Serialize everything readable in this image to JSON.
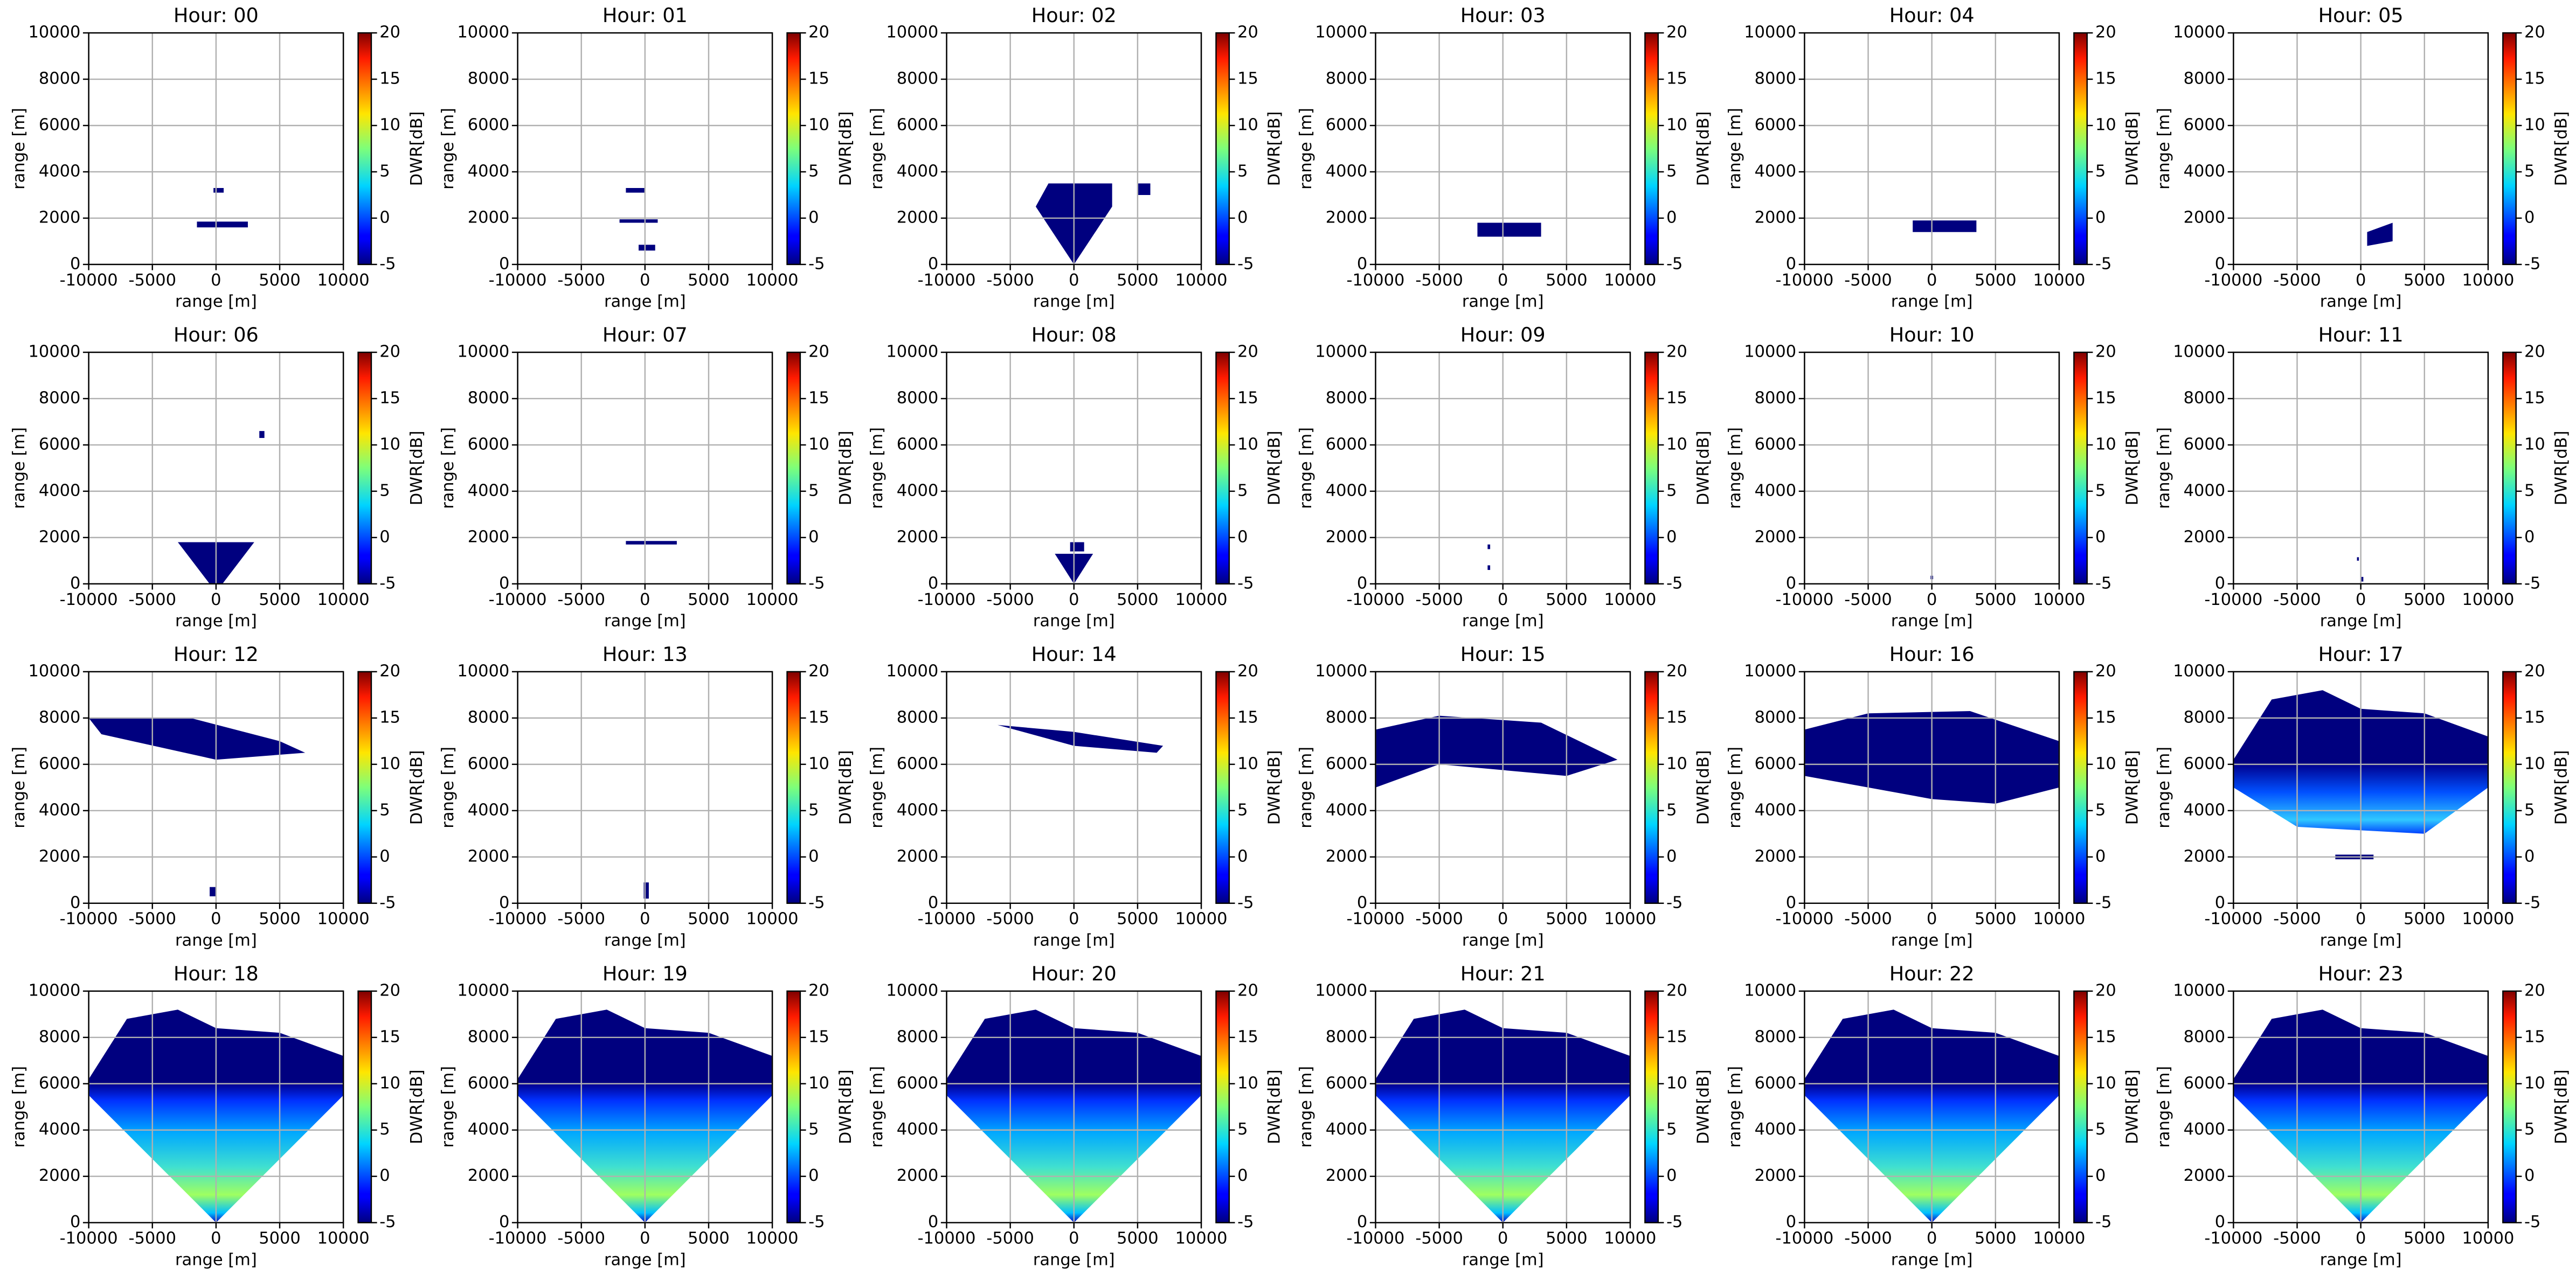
{
  "chart_data": [
    {
      "type": "heatmap",
      "title": "Hour: 00",
      "xlabel": "range [m]",
      "ylabel": "range [m]",
      "xlim": [
        -10000,
        10000
      ],
      "ylim": [
        0,
        10000
      ],
      "xticks": [
        -10000,
        -5000,
        0,
        5000,
        10000
      ],
      "yticks": [
        0,
        2000,
        4000,
        6000,
        8000,
        10000
      ],
      "grid": true,
      "colormap": "jet",
      "colorbar": {
        "label": "DWR[dB]",
        "lim": [
          -5,
          20
        ],
        "ticks": [
          -5,
          0,
          5,
          10,
          15,
          20
        ]
      }
    },
    {
      "type": "heatmap",
      "title": "Hour: 01",
      "xlabel": "range [m]",
      "ylabel": "range [m]",
      "xlim": [
        -10000,
        10000
      ],
      "ylim": [
        0,
        10000
      ],
      "xticks": [
        -10000,
        -5000,
        0,
        5000,
        10000
      ],
      "yticks": [
        0,
        2000,
        4000,
        6000,
        8000,
        10000
      ],
      "grid": true,
      "colormap": "jet",
      "colorbar": {
        "label": "DWR[dB]",
        "lim": [
          -5,
          20
        ],
        "ticks": [
          -5,
          0,
          5,
          10,
          15,
          20
        ]
      }
    },
    {
      "type": "heatmap",
      "title": "Hour: 02",
      "xlabel": "range [m]",
      "ylabel": "range [m]",
      "xlim": [
        -10000,
        10000
      ],
      "ylim": [
        0,
        10000
      ],
      "xticks": [
        -10000,
        -5000,
        0,
        5000,
        10000
      ],
      "yticks": [
        0,
        2000,
        4000,
        6000,
        8000,
        10000
      ],
      "grid": true,
      "colormap": "jet",
      "colorbar": {
        "label": "DWR[dB]",
        "lim": [
          -5,
          20
        ],
        "ticks": [
          -5,
          0,
          5,
          10,
          15,
          20
        ]
      }
    },
    {
      "type": "heatmap",
      "title": "Hour: 03",
      "xlabel": "range [m]",
      "ylabel": "range [m]",
      "xlim": [
        -10000,
        10000
      ],
      "ylim": [
        0,
        10000
      ],
      "xticks": [
        -10000,
        -5000,
        0,
        5000,
        10000
      ],
      "yticks": [
        0,
        2000,
        4000,
        6000,
        8000,
        10000
      ],
      "grid": true,
      "colormap": "jet",
      "colorbar": {
        "label": "DWR[dB]",
        "lim": [
          -5,
          20
        ],
        "ticks": [
          -5,
          0,
          5,
          10,
          15,
          20
        ]
      }
    },
    {
      "type": "heatmap",
      "title": "Hour: 04",
      "xlabel": "range [m]",
      "ylabel": "range [m]",
      "xlim": [
        -10000,
        10000
      ],
      "ylim": [
        0,
        10000
      ],
      "xticks": [
        -10000,
        -5000,
        0,
        5000,
        10000
      ],
      "yticks": [
        0,
        2000,
        4000,
        6000,
        8000,
        10000
      ],
      "grid": true,
      "colormap": "jet",
      "colorbar": {
        "label": "DWR[dB]",
        "lim": [
          -5,
          20
        ],
        "ticks": [
          -5,
          0,
          5,
          10,
          15,
          20
        ]
      }
    },
    {
      "type": "heatmap",
      "title": "Hour: 05",
      "xlabel": "range [m]",
      "ylabel": "range [m]",
      "xlim": [
        -10000,
        10000
      ],
      "ylim": [
        0,
        10000
      ],
      "xticks": [
        -10000,
        -5000,
        0,
        5000,
        10000
      ],
      "yticks": [
        0,
        2000,
        4000,
        6000,
        8000,
        10000
      ],
      "grid": true,
      "colormap": "jet",
      "colorbar": {
        "label": "DWR[dB]",
        "lim": [
          -5,
          20
        ],
        "ticks": [
          -5,
          0,
          5,
          10,
          15,
          20
        ]
      }
    },
    {
      "type": "heatmap",
      "title": "Hour: 06",
      "xlabel": "range [m]",
      "ylabel": "range [m]",
      "xlim": [
        -10000,
        10000
      ],
      "ylim": [
        0,
        10000
      ],
      "xticks": [
        -10000,
        -5000,
        0,
        5000,
        10000
      ],
      "yticks": [
        0,
        2000,
        4000,
        6000,
        8000,
        10000
      ],
      "grid": true,
      "colormap": "jet",
      "colorbar": {
        "label": "DWR[dB]",
        "lim": [
          -5,
          20
        ],
        "ticks": [
          -5,
          0,
          5,
          10,
          15,
          20
        ]
      }
    },
    {
      "type": "heatmap",
      "title": "Hour: 07",
      "xlabel": "range [m]",
      "ylabel": "range [m]",
      "xlim": [
        -10000,
        10000
      ],
      "ylim": [
        0,
        10000
      ],
      "xticks": [
        -10000,
        -5000,
        0,
        5000,
        10000
      ],
      "yticks": [
        0,
        2000,
        4000,
        6000,
        8000,
        10000
      ],
      "grid": true,
      "colormap": "jet",
      "colorbar": {
        "label": "DWR[dB]",
        "lim": [
          -5,
          20
        ],
        "ticks": [
          -5,
          0,
          5,
          10,
          15,
          20
        ]
      }
    },
    {
      "type": "heatmap",
      "title": "Hour: 08",
      "xlabel": "range [m]",
      "ylabel": "range [m]",
      "xlim": [
        -10000,
        10000
      ],
      "ylim": [
        0,
        10000
      ],
      "xticks": [
        -10000,
        -5000,
        0,
        5000,
        10000
      ],
      "yticks": [
        0,
        2000,
        4000,
        6000,
        8000,
        10000
      ],
      "grid": true,
      "colormap": "jet",
      "colorbar": {
        "label": "DWR[dB]",
        "lim": [
          -5,
          20
        ],
        "ticks": [
          -5,
          0,
          5,
          10,
          15,
          20
        ]
      }
    },
    {
      "type": "heatmap",
      "title": "Hour: 09",
      "xlabel": "range [m]",
      "ylabel": "range [m]",
      "xlim": [
        -10000,
        10000
      ],
      "ylim": [
        0,
        10000
      ],
      "xticks": [
        -10000,
        -5000,
        0,
        5000,
        10000
      ],
      "yticks": [
        0,
        2000,
        4000,
        6000,
        8000,
        10000
      ],
      "grid": true,
      "colormap": "jet",
      "colorbar": {
        "label": "DWR[dB]",
        "lim": [
          -5,
          20
        ],
        "ticks": [
          -5,
          0,
          5,
          10,
          15,
          20
        ]
      }
    },
    {
      "type": "heatmap",
      "title": "Hour: 10",
      "xlabel": "range [m]",
      "ylabel": "range [m]",
      "xlim": [
        -10000,
        10000
      ],
      "ylim": [
        0,
        10000
      ],
      "xticks": [
        -10000,
        -5000,
        0,
        5000,
        10000
      ],
      "yticks": [
        0,
        2000,
        4000,
        6000,
        8000,
        10000
      ],
      "grid": true,
      "colormap": "jet",
      "colorbar": {
        "label": "DWR[dB]",
        "lim": [
          -5,
          20
        ],
        "ticks": [
          -5,
          0,
          5,
          10,
          15,
          20
        ]
      }
    },
    {
      "type": "heatmap",
      "title": "Hour: 11",
      "xlabel": "range [m]",
      "ylabel": "range [m]",
      "xlim": [
        -10000,
        10000
      ],
      "ylim": [
        0,
        10000
      ],
      "xticks": [
        -10000,
        -5000,
        0,
        5000,
        10000
      ],
      "yticks": [
        0,
        2000,
        4000,
        6000,
        8000,
        10000
      ],
      "grid": true,
      "colormap": "jet",
      "colorbar": {
        "label": "DWR[dB]",
        "lim": [
          -5,
          20
        ],
        "ticks": [
          -5,
          0,
          5,
          10,
          15,
          20
        ]
      }
    },
    {
      "type": "heatmap",
      "title": "Hour: 12",
      "xlabel": "range [m]",
      "ylabel": "range [m]",
      "xlim": [
        -10000,
        10000
      ],
      "ylim": [
        0,
        10000
      ],
      "xticks": [
        -10000,
        -5000,
        0,
        5000,
        10000
      ],
      "yticks": [
        0,
        2000,
        4000,
        6000,
        8000,
        10000
      ],
      "grid": true,
      "colormap": "jet",
      "colorbar": {
        "label": "DWR[dB]",
        "lim": [
          -5,
          20
        ],
        "ticks": [
          -5,
          0,
          5,
          10,
          15,
          20
        ]
      }
    },
    {
      "type": "heatmap",
      "title": "Hour: 13",
      "xlabel": "range [m]",
      "ylabel": "range [m]",
      "xlim": [
        -10000,
        10000
      ],
      "ylim": [
        0,
        10000
      ],
      "xticks": [
        -10000,
        -5000,
        0,
        5000,
        10000
      ],
      "yticks": [
        0,
        2000,
        4000,
        6000,
        8000,
        10000
      ],
      "grid": true,
      "colormap": "jet",
      "colorbar": {
        "label": "DWR[dB]",
        "lim": [
          -5,
          20
        ],
        "ticks": [
          -5,
          0,
          5,
          10,
          15,
          20
        ]
      }
    },
    {
      "type": "heatmap",
      "title": "Hour: 14",
      "xlabel": "range [m]",
      "ylabel": "range [m]",
      "xlim": [
        -10000,
        10000
      ],
      "ylim": [
        0,
        10000
      ],
      "xticks": [
        -10000,
        -5000,
        0,
        5000,
        10000
      ],
      "yticks": [
        0,
        2000,
        4000,
        6000,
        8000,
        10000
      ],
      "grid": true,
      "colormap": "jet",
      "colorbar": {
        "label": "DWR[dB]",
        "lim": [
          -5,
          20
        ],
        "ticks": [
          -5,
          0,
          5,
          10,
          15,
          20
        ]
      }
    },
    {
      "type": "heatmap",
      "title": "Hour: 15",
      "xlabel": "range [m]",
      "ylabel": "range [m]",
      "xlim": [
        -10000,
        10000
      ],
      "ylim": [
        0,
        10000
      ],
      "xticks": [
        -10000,
        -5000,
        0,
        5000,
        10000
      ],
      "yticks": [
        0,
        2000,
        4000,
        6000,
        8000,
        10000
      ],
      "grid": true,
      "colormap": "jet",
      "colorbar": {
        "label": "DWR[dB]",
        "lim": [
          -5,
          20
        ],
        "ticks": [
          -5,
          0,
          5,
          10,
          15,
          20
        ]
      }
    },
    {
      "type": "heatmap",
      "title": "Hour: 16",
      "xlabel": "range [m]",
      "ylabel": "range [m]",
      "xlim": [
        -10000,
        10000
      ],
      "ylim": [
        0,
        10000
      ],
      "xticks": [
        -10000,
        -5000,
        0,
        5000,
        10000
      ],
      "yticks": [
        0,
        2000,
        4000,
        6000,
        8000,
        10000
      ],
      "grid": true,
      "colormap": "jet",
      "colorbar": {
        "label": "DWR[dB]",
        "lim": [
          -5,
          20
        ],
        "ticks": [
          -5,
          0,
          5,
          10,
          15,
          20
        ]
      }
    },
    {
      "type": "heatmap",
      "title": "Hour: 17",
      "xlabel": "range [m]",
      "ylabel": "range [m]",
      "xlim": [
        -10000,
        10000
      ],
      "ylim": [
        0,
        10000
      ],
      "xticks": [
        -10000,
        -5000,
        0,
        5000,
        10000
      ],
      "yticks": [
        0,
        2000,
        4000,
        6000,
        8000,
        10000
      ],
      "grid": true,
      "colormap": "jet",
      "colorbar": {
        "label": "DWR[dB]",
        "lim": [
          -5,
          20
        ],
        "ticks": [
          -5,
          0,
          5,
          10,
          15,
          20
        ]
      }
    },
    {
      "type": "heatmap",
      "title": "Hour: 18",
      "xlabel": "range [m]",
      "ylabel": "range [m]",
      "xlim": [
        -10000,
        10000
      ],
      "ylim": [
        0,
        10000
      ],
      "xticks": [
        -10000,
        -5000,
        0,
        5000,
        10000
      ],
      "yticks": [
        0,
        2000,
        4000,
        6000,
        8000,
        10000
      ],
      "grid": true,
      "colormap": "jet",
      "colorbar": {
        "label": "DWR[dB]",
        "lim": [
          -5,
          20
        ],
        "ticks": [
          -5,
          0,
          5,
          10,
          15,
          20
        ]
      }
    },
    {
      "type": "heatmap",
      "title": "Hour: 19",
      "xlabel": "range [m]",
      "ylabel": "range [m]",
      "xlim": [
        -10000,
        10000
      ],
      "ylim": [
        0,
        10000
      ],
      "xticks": [
        -10000,
        -5000,
        0,
        5000,
        10000
      ],
      "yticks": [
        0,
        2000,
        4000,
        6000,
        8000,
        10000
      ],
      "grid": true,
      "colormap": "jet",
      "colorbar": {
        "label": "DWR[dB]",
        "lim": [
          -5,
          20
        ],
        "ticks": [
          -5,
          0,
          5,
          10,
          15,
          20
        ]
      }
    },
    {
      "type": "heatmap",
      "title": "Hour: 20",
      "xlabel": "range [m]",
      "ylabel": "range [m]",
      "xlim": [
        -10000,
        10000
      ],
      "ylim": [
        0,
        10000
      ],
      "xticks": [
        -10000,
        -5000,
        0,
        5000,
        10000
      ],
      "yticks": [
        0,
        2000,
        4000,
        6000,
        8000,
        10000
      ],
      "grid": true,
      "colormap": "jet",
      "colorbar": {
        "label": "DWR[dB]",
        "lim": [
          -5,
          20
        ],
        "ticks": [
          -5,
          0,
          5,
          10,
          15,
          20
        ]
      }
    },
    {
      "type": "heatmap",
      "title": "Hour: 21",
      "xlabel": "range [m]",
      "ylabel": "range [m]",
      "xlim": [
        -10000,
        10000
      ],
      "ylim": [
        0,
        10000
      ],
      "xticks": [
        -10000,
        -5000,
        0,
        5000,
        10000
      ],
      "yticks": [
        0,
        2000,
        4000,
        6000,
        8000,
        10000
      ],
      "grid": true,
      "colormap": "jet",
      "colorbar": {
        "label": "DWR[dB]",
        "lim": [
          -5,
          20
        ],
        "ticks": [
          -5,
          0,
          5,
          10,
          15,
          20
        ]
      }
    },
    {
      "type": "heatmap",
      "title": "Hour: 22",
      "xlabel": "range [m]",
      "ylabel": "range [m]",
      "xlim": [
        -10000,
        10000
      ],
      "ylim": [
        0,
        10000
      ],
      "xticks": [
        -10000,
        -5000,
        0,
        5000,
        10000
      ],
      "yticks": [
        0,
        2000,
        4000,
        6000,
        8000,
        10000
      ],
      "grid": true,
      "colormap": "jet",
      "colorbar": {
        "label": "DWR[dB]",
        "lim": [
          -5,
          20
        ],
        "ticks": [
          -5,
          0,
          5,
          10,
          15,
          20
        ]
      }
    },
    {
      "type": "heatmap",
      "title": "Hour: 23",
      "xlabel": "range [m]",
      "ylabel": "range [m]",
      "xlim": [
        -10000,
        10000
      ],
      "ylim": [
        0,
        10000
      ],
      "xticks": [
        -10000,
        -5000,
        0,
        5000,
        10000
      ],
      "yticks": [
        0,
        2000,
        4000,
        6000,
        8000,
        10000
      ],
      "grid": true,
      "colormap": "jet",
      "colorbar": {
        "label": "DWR[dB]",
        "lim": [
          -5,
          20
        ],
        "ticks": [
          -5,
          0,
          5,
          10,
          15,
          20
        ]
      }
    }
  ]
}
